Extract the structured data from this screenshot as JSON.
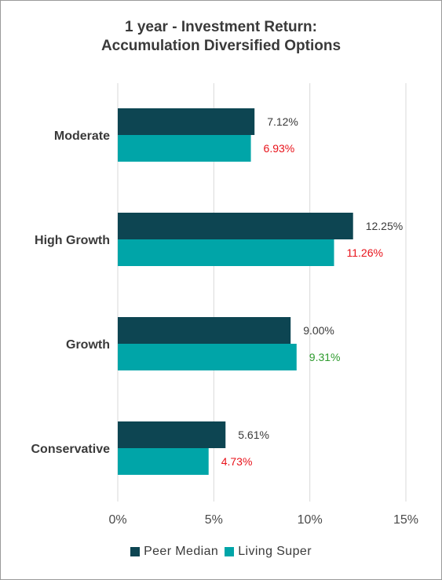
{
  "chart_data": {
    "type": "bar",
    "orientation": "horizontal",
    "title_lines": [
      "1 year - Investment Return:",
      "Accumulation Diversified Options"
    ],
    "categories": [
      "Moderate",
      "High Growth",
      "Growth",
      "Conservative"
    ],
    "series": [
      {
        "name": "Peer Median",
        "color": "#0d4552",
        "values": [
          7.12,
          12.25,
          9.0,
          5.61
        ],
        "labels": [
          "7.12%",
          "12.25%",
          "9.00%",
          "5.61%"
        ],
        "label_colors": [
          "#3a3a3a",
          "#3a3a3a",
          "#3a3a3a",
          "#3a3a3a"
        ]
      },
      {
        "name": "Living Super",
        "color": "#00a5a8",
        "values": [
          6.93,
          11.26,
          9.31,
          4.73
        ],
        "labels": [
          "6.93%",
          "11.26%",
          "9.31%",
          "4.73%"
        ],
        "label_colors": [
          "#e8131b",
          "#e8131b",
          "#2e9b2e",
          "#e8131b"
        ]
      }
    ],
    "xlim": [
      0,
      15
    ],
    "xticks": [
      0,
      5,
      10,
      15
    ],
    "xtick_labels": [
      "0%",
      "5%",
      "10%",
      "15%"
    ],
    "grid": "vertical",
    "gridline_color": "#d9d9d9",
    "legend_position": "bottom"
  }
}
